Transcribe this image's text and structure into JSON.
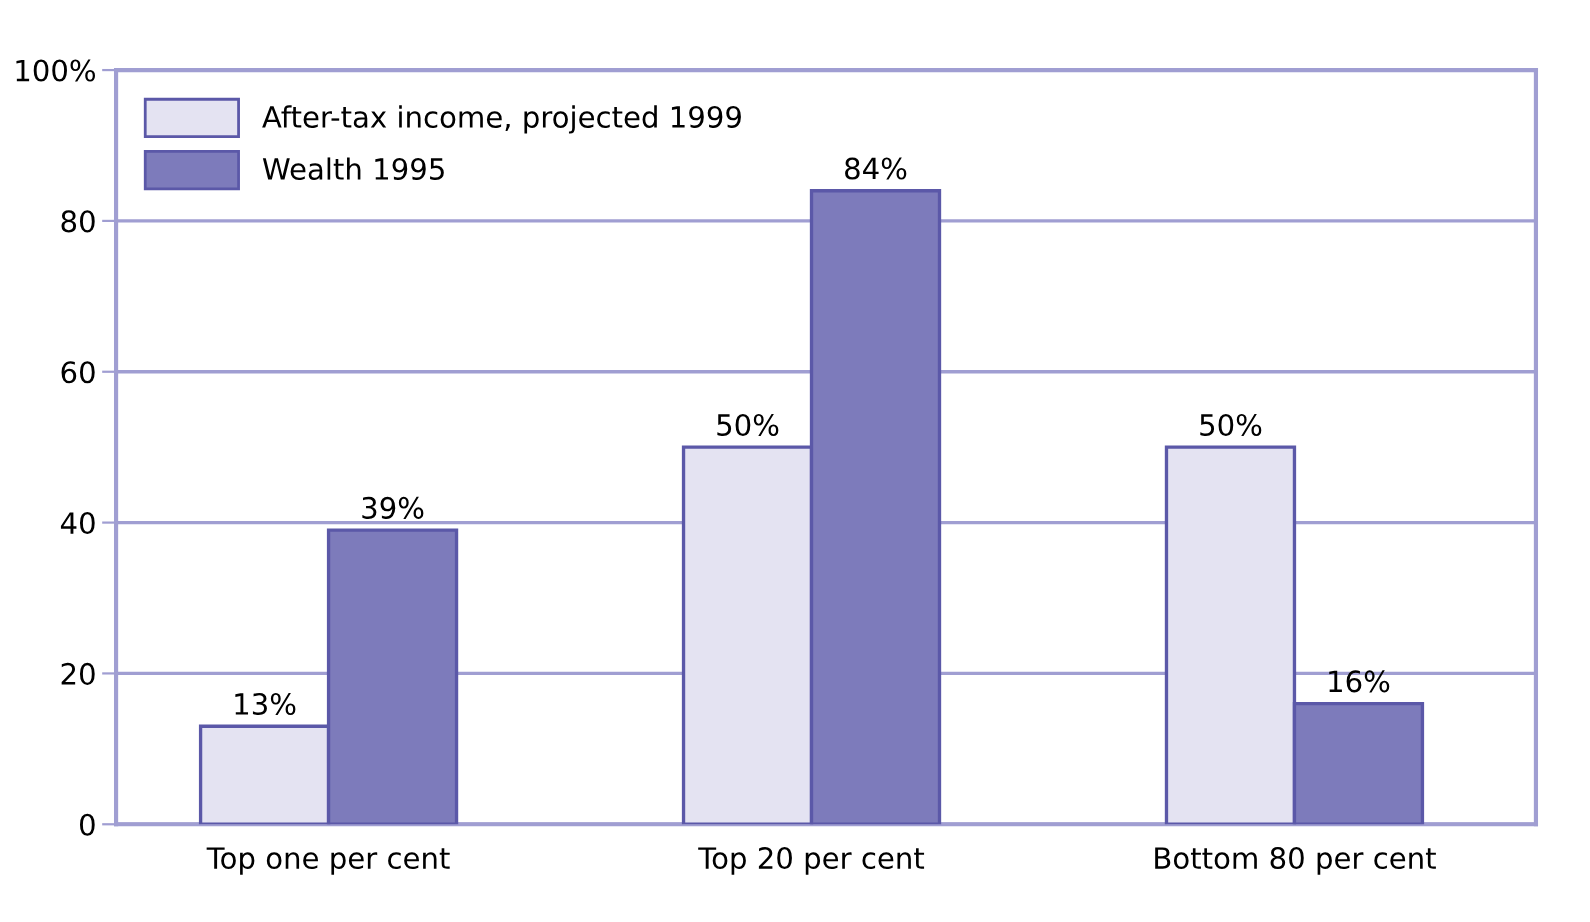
{
  "chart_data": {
    "type": "bar",
    "categories": [
      "Top one per cent",
      "Top 20 per cent",
      "Bottom 80 per cent"
    ],
    "series": [
      {
        "name": "After-tax income, projected 1999",
        "color": "#e4e3f2",
        "values": [
          13,
          50,
          50
        ],
        "value_labels": [
          "13%",
          "50%",
          "50%"
        ]
      },
      {
        "name": "Wealth 1995",
        "color": "#7d7bbb",
        "values": [
          39,
          84,
          16
        ],
        "value_labels": [
          "39%",
          "84%",
          "16%"
        ]
      }
    ],
    "ylim": [
      0,
      100
    ],
    "yticks": [
      0,
      20,
      40,
      60,
      80,
      {
        "value": 100,
        "label": "100%"
      }
    ],
    "grid": "y",
    "legend": "top left"
  }
}
